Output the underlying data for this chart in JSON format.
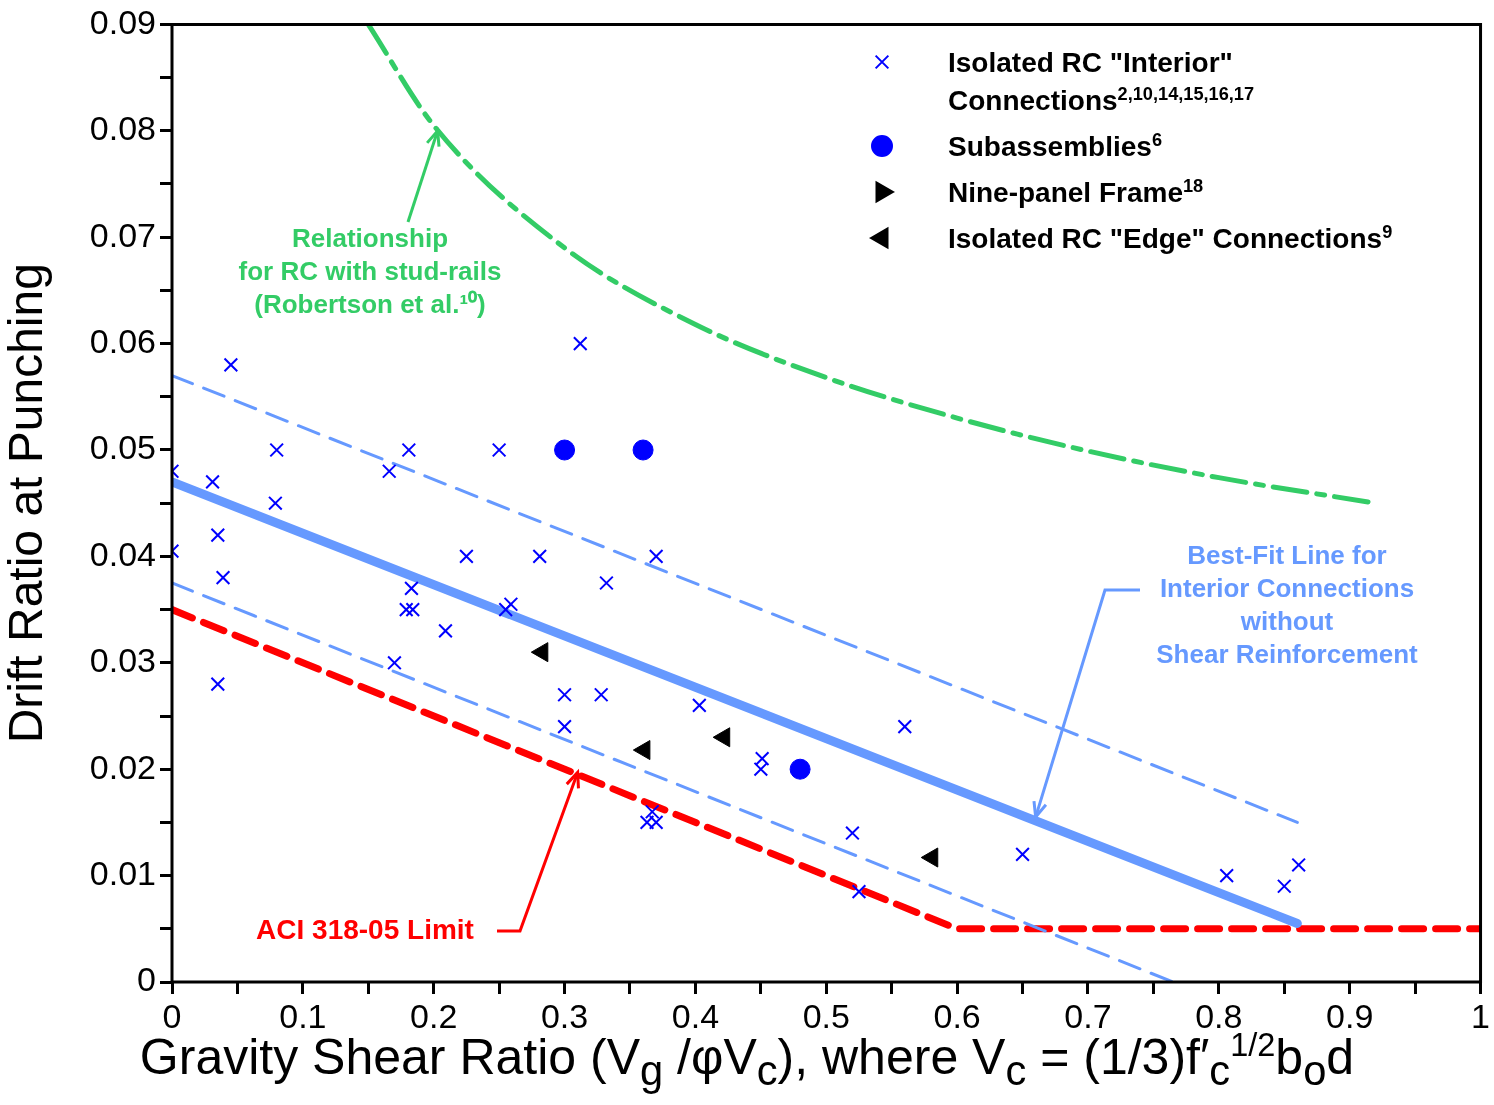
{
  "chart_data": {
    "type": "scatter",
    "xlabel": "Gravity Shear Ratio (V$_{g}$ /φV$_{c}$), where V$_{c}$ = (1/3)f′$_{c}$$^{1/2}$b$_{o}$d",
    "ylabel": "Drift Ratio at Punching",
    "xlim": [
      0,
      1
    ],
    "ylim": [
      0,
      0.09
    ],
    "xticks": [
      0,
      {
        "value": 0.05,
        "label": null
      },
      0.1,
      {
        "value": 0.15,
        "label": null
      },
      0.2,
      {
        "value": 0.25,
        "label": null
      },
      0.3,
      {
        "value": 0.35,
        "label": null
      },
      0.4,
      {
        "value": 0.45,
        "label": null
      },
      0.5,
      {
        "value": 0.55,
        "label": null
      },
      0.6,
      {
        "value": 0.65,
        "label": null
      },
      0.7,
      {
        "value": 0.75,
        "label": null
      },
      0.8,
      {
        "value": 0.85,
        "label": null
      },
      0.9,
      {
        "value": 0.95,
        "label": null
      },
      1
    ],
    "yticks": [
      0,
      {
        "value": 0.005,
        "label": null
      },
      0.01,
      {
        "value": 0.015,
        "label": null
      },
      0.02,
      {
        "value": 0.025,
        "label": null
      },
      0.03,
      {
        "value": 0.035,
        "label": null
      },
      0.04,
      {
        "value": 0.045,
        "label": null
      },
      0.05,
      {
        "value": 0.055,
        "label": null
      },
      0.06,
      {
        "value": 0.065,
        "label": null
      },
      0.07,
      {
        "value": 0.075,
        "label": null
      },
      0.08,
      {
        "value": 0.085,
        "label": null
      },
      0.09
    ],
    "grid": false,
    "legend": "top right",
    "series": [
      {
        "name": "Isolated RC \"Interior\" Connections$^{2,10,14,15,16,17}$",
        "type": "scatter",
        "marker": "cross",
        "color": "#0000ff",
        "x": [
          0,
          0,
          0.045,
          0.031,
          0.035,
          0.039,
          0.035,
          0.08,
          0.079,
          0.166,
          0.181,
          0.183,
          0.179,
          0.184,
          0.17,
          0.209,
          0.225,
          0.25,
          0.259,
          0.255,
          0.281,
          0.312,
          0.332,
          0.3,
          0.3,
          0.328,
          0.37,
          0.403,
          0.363,
          0.367,
          0.37,
          0.451,
          0.45,
          0.52,
          0.525,
          0.56,
          0.65,
          0.806,
          0.85,
          0.861
        ],
        "values": [
          0.048,
          0.0405,
          0.058,
          0.047,
          0.042,
          0.038,
          0.028,
          0.05,
          0.045,
          0.048,
          0.05,
          0.037,
          0.035,
          0.035,
          0.03,
          0.033,
          0.04,
          0.05,
          0.0355,
          0.035,
          0.04,
          0.06,
          0.0375,
          0.027,
          0.024,
          0.027,
          0.04,
          0.026,
          0.015,
          0.016,
          0.015,
          0.021,
          0.02,
          0.014,
          0.0085,
          0.024,
          0.012,
          0.01,
          0.009,
          0.011
        ]
      },
      {
        "name": "Subassemblies$^{6}$",
        "type": "scatter",
        "marker": "circle",
        "color": "#0000ff",
        "x": [
          0.3,
          0.36,
          0.48
        ],
        "values": [
          0.05,
          0.05,
          0.02
        ]
      },
      {
        "name": "Nine-panel Frame$^{18}$",
        "type": "scatter",
        "marker": "triangle",
        "color": "#000000"
      },
      {
        "name": "Isolated RC \"Edge\" Connections$^{9}$",
        "type": "scatter",
        "marker": "triangle",
        "color": "#000000",
        "x": [
          0.283,
          0.361,
          0.422,
          0.581
        ],
        "values": [
          0.031,
          0.0218,
          0.023,
          0.0117
        ]
      },
      {
        "type": "line",
        "marker": "none",
        "line_style": "solid",
        "color": "#6699ff",
        "x": [
          0,
          0.86
        ],
        "values": [
          0.047,
          0.0055
        ]
      },
      {
        "type": "line",
        "marker": "none",
        "line_style": "dashed",
        "color": "#6699ff",
        "x": [
          0,
          0.86
        ],
        "values": [
          0.057,
          0.015
        ]
      },
      {
        "type": "line",
        "marker": "none",
        "line_style": "dashed",
        "color": "#6699ff",
        "x": [
          0,
          0.765
        ],
        "values": [
          0.0375,
          0
        ]
      },
      {
        "type": "line",
        "marker": "none",
        "line_style": "dashed",
        "color": "#ff0000",
        "x": [
          0,
          0.6,
          1
        ],
        "values": [
          0.035,
          0.005,
          0.005
        ]
      },
      {
        "type": "line",
        "marker": "none",
        "line_style": "dashed",
        "color": "#33cc66",
        "x": [
          0.15,
          0.2,
          0.3,
          0.4,
          0.5,
          0.6,
          0.7,
          0.8,
          0.92
        ],
        "values": [
          0.09,
          0.0805,
          0.069,
          0.0618,
          0.0568,
          0.053,
          0.0499,
          0.0474,
          0.045
        ]
      }
    ],
    "annotations": [
      {
        "text": "Relationship\nfor RC with stud-rails\n(Robertson et al.¹⁰)",
        "x": 0.203,
        "y": 0.08
      },
      {
        "text": "Best-Fit Line for\nInterior Connections\nwithout\nShear Reinforcement",
        "x": 0.66,
        "y": 0.0155
      },
      {
        "text": "ACI 318-05 Limit",
        "x": 0.31,
        "y": 0.0197
      }
    ]
  }
}
